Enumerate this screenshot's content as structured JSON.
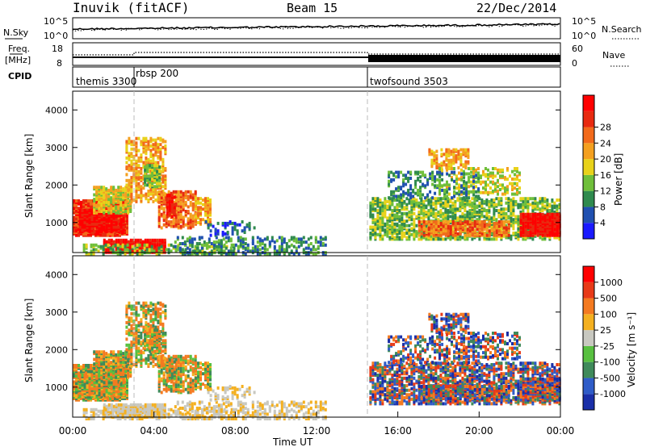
{
  "header": {
    "station": "Inuvik (fitACF)",
    "beam": "Beam 15",
    "date": "22/Dec/2014"
  },
  "chart_data": [
    {
      "type": "line",
      "panel": "noise",
      "left_label": "N.Sky",
      "right_label": "N.Search",
      "left_ticks": [
        "10^5",
        "10^0"
      ],
      "right_ticks": [
        "10^5",
        "10^0"
      ],
      "series": [
        {
          "name": "N.Sky",
          "style": "solid"
        },
        {
          "name": "N.Search",
          "style": "dotted"
        }
      ]
    },
    {
      "type": "line",
      "panel": "frequency",
      "left_label_1": "Freq.",
      "left_label_2": "[MHz]",
      "right_label": "Nave",
      "left_ticks": [
        "18",
        "8"
      ],
      "right_ticks": [
        "60",
        "0"
      ],
      "series": [
        {
          "name": "Freq.",
          "style": "solid"
        },
        {
          "name": "Nave",
          "style": "dotted"
        }
      ]
    },
    {
      "type": "table",
      "panel": "cpid",
      "label": "CPID",
      "segments": [
        {
          "name": "themis 3300",
          "start_hour": 0.0
        },
        {
          "name": "rbsp 200",
          "start_hour": 3.0
        },
        {
          "name": "twofsound 3503",
          "start_hour": 14.5
        }
      ]
    },
    {
      "type": "heatmap",
      "panel": "power",
      "ylabel": "Slant Range [km]",
      "yticks": [
        1000,
        2000,
        3000,
        4000
      ],
      "ylim": [
        200,
        4500
      ],
      "colorbar_label": "Power [dB]",
      "colorbar_ticks": [
        4,
        8,
        12,
        16,
        20,
        24,
        28
      ],
      "colors": [
        "#1a1aff",
        "#2050b0",
        "#2f8a4e",
        "#6fbf3a",
        "#e8d21a",
        "#f4a020",
        "#f26a1b",
        "#e82a10",
        "#ff0000"
      ]
    },
    {
      "type": "heatmap",
      "panel": "velocity",
      "ylabel": "Slant Range [km]",
      "yticks": [
        1000,
        2000,
        3000,
        4000
      ],
      "ylim": [
        200,
        4500
      ],
      "colorbar_label": "Velocity [m s⁻¹]",
      "colorbar_ticks": [
        "1000",
        "500",
        "100",
        "25",
        "-25",
        "-100",
        "-500",
        "-1000"
      ],
      "colors": [
        "#1a2fa8",
        "#2f5cc8",
        "#3f8a5a",
        "#58c040",
        "#c8c8c0",
        "#f4b020",
        "#f47a20",
        "#e83a18",
        "#ff0000"
      ]
    }
  ],
  "axis": {
    "xlabel": "Time UT",
    "xticks": [
      "00:00",
      "04:00",
      "08:00",
      "12:00",
      "16:00",
      "20:00",
      "00:00"
    ]
  }
}
